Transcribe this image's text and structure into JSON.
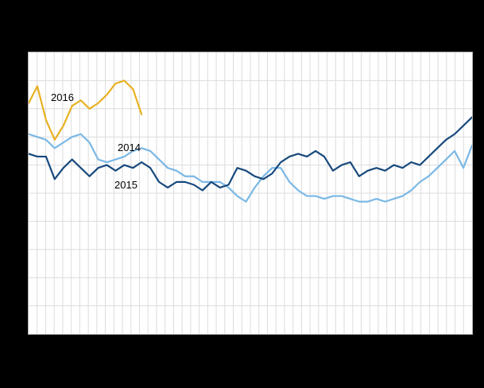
{
  "window": {
    "background_color": "#000000",
    "plot_background_color": "#ffffff",
    "gridline_color": "#dcdcdc"
  },
  "chart_data": {
    "type": "line",
    "title": "",
    "xlabel": "",
    "ylabel": "",
    "x_unit": "week",
    "x": [
      1,
      2,
      3,
      4,
      5,
      6,
      7,
      8,
      9,
      10,
      11,
      12,
      13,
      14,
      15,
      16,
      17,
      18,
      19,
      20,
      21,
      22,
      23,
      24,
      25,
      26,
      27,
      28,
      29,
      30,
      31,
      32,
      33,
      34,
      35,
      36,
      37,
      38,
      39,
      40,
      41,
      42,
      43,
      44,
      45,
      46,
      47,
      48,
      49,
      50,
      51,
      52
    ],
    "ylim": [
      0,
      10
    ],
    "grid": "both",
    "legend": "inline-labels",
    "tick_labels_visible": false,
    "series": [
      {
        "name": "2014",
        "color": "#7ab8e6",
        "values": [
          7.1,
          7.0,
          6.9,
          6.6,
          6.8,
          7.0,
          7.1,
          6.8,
          6.2,
          6.1,
          6.2,
          6.3,
          6.5,
          6.6,
          6.5,
          6.2,
          5.9,
          5.8,
          5.6,
          5.6,
          5.4,
          5.4,
          5.4,
          5.2,
          4.9,
          4.7,
          5.2,
          5.6,
          5.9,
          5.9,
          5.4,
          5.1,
          4.9,
          4.9,
          4.8,
          4.9,
          4.9,
          4.8,
          4.7,
          4.7,
          4.8,
          4.7,
          4.8,
          4.9,
          5.1,
          5.4,
          5.6,
          5.9,
          6.2,
          6.5,
          5.9,
          6.7
        ]
      },
      {
        "name": "2015",
        "color": "#17497d",
        "values": [
          6.4,
          6.3,
          6.3,
          5.5,
          5.9,
          6.2,
          5.9,
          5.6,
          5.9,
          6.0,
          5.8,
          6.0,
          5.9,
          6.1,
          5.9,
          5.4,
          5.2,
          5.4,
          5.4,
          5.3,
          5.1,
          5.4,
          5.2,
          5.3,
          5.9,
          5.8,
          5.6,
          5.5,
          5.7,
          6.1,
          6.3,
          6.4,
          6.3,
          6.5,
          6.3,
          5.8,
          6.0,
          6.1,
          5.6,
          5.8,
          5.9,
          5.8,
          6.0,
          5.9,
          6.1,
          6.0,
          6.3,
          6.6,
          6.9,
          7.1,
          7.4,
          7.7
        ]
      },
      {
        "name": "2016",
        "color": "#e8b122",
        "values": [
          8.2,
          8.8,
          7.6,
          6.9,
          7.4,
          8.1,
          8.3,
          8.0,
          8.2,
          8.5,
          8.9,
          9.0,
          8.7,
          7.8
        ]
      }
    ],
    "annotations": [
      {
        "text": "2016"
      },
      {
        "text": "2014"
      },
      {
        "text": "2015"
      }
    ]
  }
}
